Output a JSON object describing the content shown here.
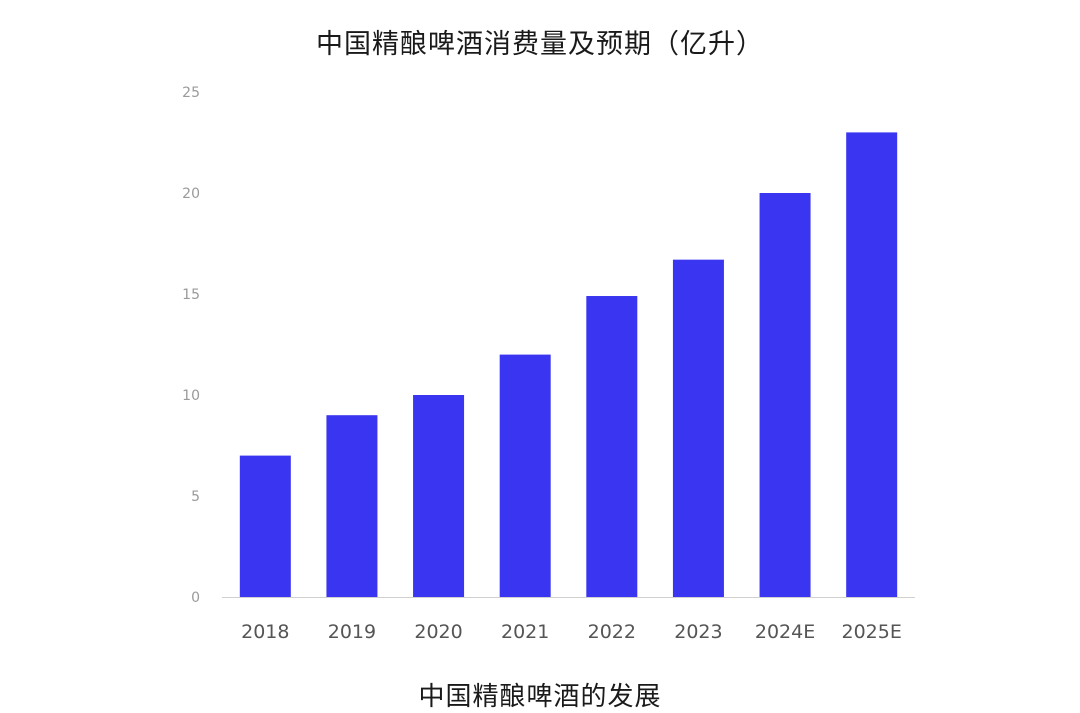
{
  "chart_data": {
    "type": "bar",
    "title": "中国精酿啤酒消费量及预期（亿升）",
    "categories": [
      "2018",
      "2019",
      "2020",
      "2021",
      "2022",
      "2023",
      "2024E",
      "2025E"
    ],
    "values": [
      7,
      9,
      10,
      12,
      14.9,
      16.7,
      20,
      23
    ],
    "ylim": [
      0,
      25
    ],
    "yticks": [
      0,
      5,
      10,
      15,
      20,
      25
    ],
    "xlabel": "",
    "ylabel": "",
    "grid": false,
    "bar_color": "#3a35f0",
    "axis_color": "#d0d0d0"
  },
  "caption": "中国精酿啤酒的发展"
}
